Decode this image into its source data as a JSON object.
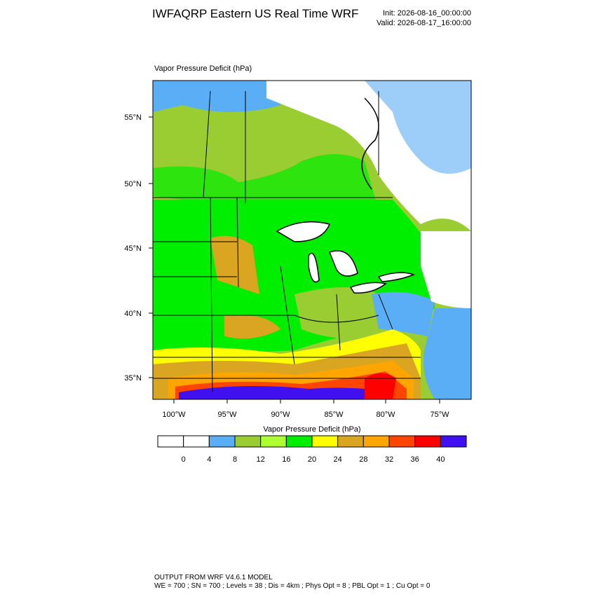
{
  "header": {
    "title": "IWFAQRP Eastern US Real Time WRF",
    "init": "Init: 2026-08-16_00:00:00",
    "valid": "Valid: 2026-08-17_16:00:00"
  },
  "map": {
    "subtitle": "Vapor Pressure Deficit   (hPa)",
    "lat_labels": [
      "55°N",
      "50°N",
      "45°N",
      "40°N",
      "35°N"
    ],
    "lon_labels": [
      "100°W",
      "95°W",
      "90°W",
      "85°W",
      "80°W",
      "75°W"
    ]
  },
  "colorbar": {
    "title": "Vapor Pressure Deficit  (hPa)",
    "colors": [
      "#ffffff",
      "#ffffff",
      "#5aaef5",
      "#9acd32",
      "#adff2f",
      "#00ee00",
      "#ffff00",
      "#daa520",
      "#ffa500",
      "#ff4500",
      "#ff0000",
      "#4010f0"
    ],
    "ticks": [
      0,
      4,
      8,
      12,
      16,
      20,
      24,
      28,
      32,
      36,
      40
    ]
  },
  "footer": {
    "line1": "OUTPUT FROM WRF V4.6.1 MODEL",
    "line2": "WE = 700 ; SN = 700 ; Levels = 38 ; Dis = 4km ; Phys Opt = 8 ; PBL Opt = 1 ; Cu Opt = 0"
  }
}
